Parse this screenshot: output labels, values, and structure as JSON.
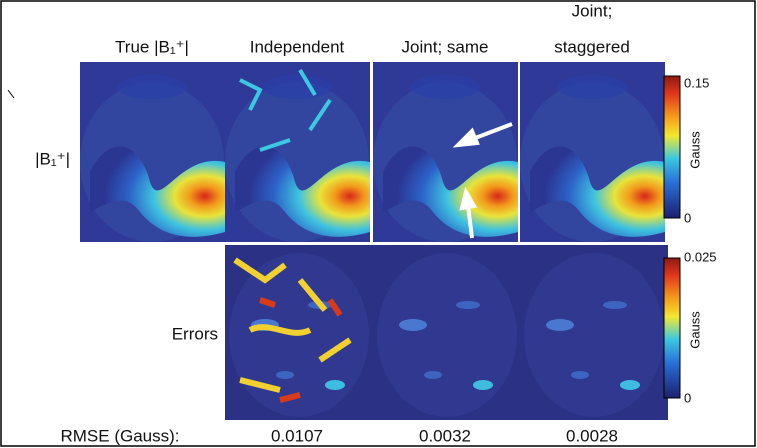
{
  "columns": [
    [
      "True |B₁⁺|"
    ],
    [
      "Independent"
    ],
    [
      "Joint; same"
    ],
    [
      "Joint;",
      "staggered"
    ]
  ],
  "rows": [
    "|B₁⁺|",
    "Errors"
  ],
  "colorbars": [
    {
      "max": 0.15,
      "min": 0,
      "unit": "Gauss"
    },
    {
      "max": 0.025,
      "min": 0,
      "unit": "Gauss"
    }
  ],
  "rmse": {
    "label": "RMSE (Gauss):",
    "values": [
      0.0107,
      0.0032,
      0.0028
    ]
  }
}
